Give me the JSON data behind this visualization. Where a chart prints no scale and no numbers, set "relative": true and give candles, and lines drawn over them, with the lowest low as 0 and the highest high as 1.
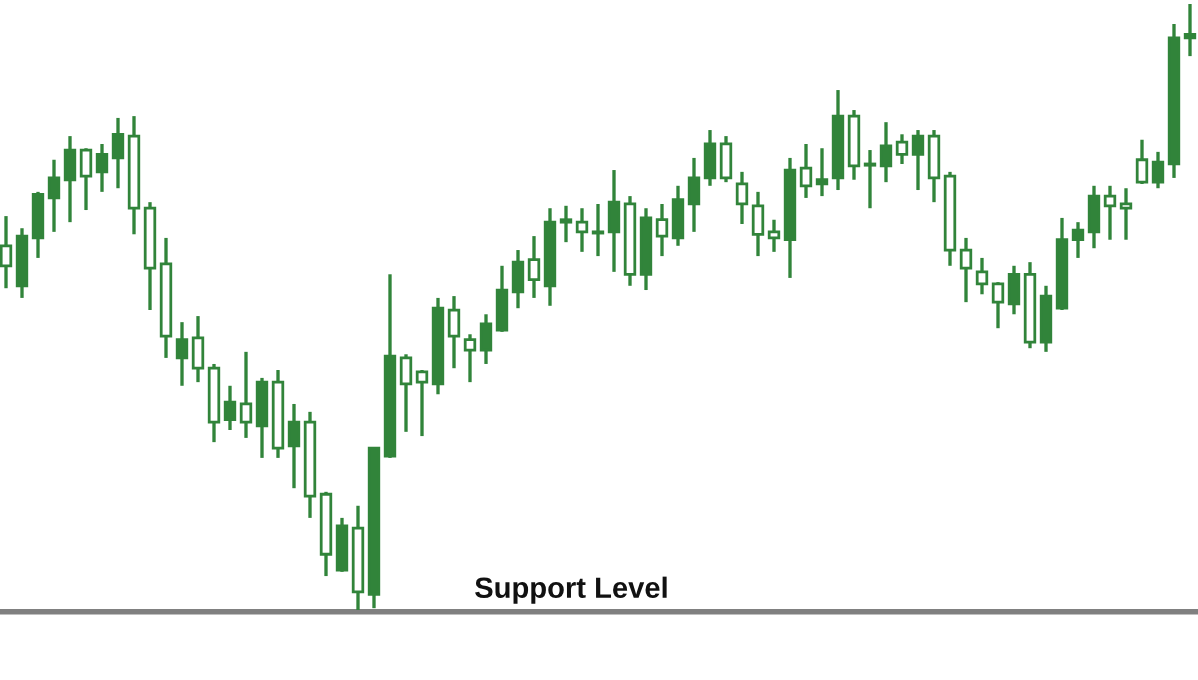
{
  "chart_data": {
    "type": "candlestick",
    "relative": true,
    "categories": [
      null,
      null,
      null,
      null,
      null,
      null,
      null,
      null,
      null,
      null,
      null,
      null,
      null,
      null,
      null,
      null,
      null,
      null,
      null,
      null,
      null,
      null,
      null,
      null,
      null,
      null,
      null,
      null,
      null,
      null,
      null,
      null,
      null,
      null,
      null,
      null,
      null,
      null,
      null,
      null,
      null,
      null,
      null,
      null,
      null,
      null,
      null,
      null,
      null,
      null,
      null,
      null,
      null,
      null,
      null,
      null,
      null,
      null,
      null,
      null,
      null,
      null,
      null,
      null,
      null,
      null,
      null,
      null,
      null,
      null,
      null,
      null,
      null,
      null,
      null
    ],
    "color": "#31843a",
    "ohlc": [
      [
        0.601,
        0.65,
        0.531,
        0.568
      ],
      [
        0.535,
        0.63,
        0.515,
        0.617
      ],
      [
        0.614,
        0.69,
        0.581,
        0.686
      ],
      [
        0.68,
        0.743,
        0.624,
        0.713
      ],
      [
        0.71,
        0.782,
        0.64,
        0.759
      ],
      [
        0.759,
        0.762,
        0.66,
        0.716
      ],
      [
        0.723,
        0.769,
        0.69,
        0.752
      ],
      [
        0.746,
        0.812,
        0.696,
        0.785
      ],
      [
        0.782,
        0.815,
        0.62,
        0.663
      ],
      [
        0.663,
        0.673,
        0.495,
        0.564
      ],
      [
        0.571,
        0.614,
        0.416,
        0.452
      ],
      [
        0.416,
        0.475,
        0.37,
        0.446
      ],
      [
        0.449,
        0.485,
        0.376,
        0.399
      ],
      [
        0.399,
        0.406,
        0.277,
        0.31
      ],
      [
        0.314,
        0.37,
        0.297,
        0.343
      ],
      [
        0.34,
        0.426,
        0.284,
        0.31
      ],
      [
        0.304,
        0.383,
        0.251,
        0.376
      ],
      [
        0.376,
        0.396,
        0.251,
        0.267
      ],
      [
        0.271,
        0.34,
        0.201,
        0.31
      ],
      [
        0.31,
        0.327,
        0.152,
        0.188
      ],
      [
        0.191,
        0.195,
        0.056,
        0.092
      ],
      [
        0.066,
        0.152,
        0.063,
        0.139
      ],
      [
        0.135,
        0.172,
        0.0,
        0.03
      ],
      [
        0.026,
        0.267,
        0.003,
        0.267
      ],
      [
        0.254,
        0.554,
        0.251,
        0.419
      ],
      [
        0.416,
        0.422,
        0.294,
        0.373
      ],
      [
        0.393,
        0.396,
        0.287,
        0.376
      ],
      [
        0.373,
        0.515,
        0.356,
        0.498
      ],
      [
        0.495,
        0.518,
        0.399,
        0.452
      ],
      [
        0.446,
        0.455,
        0.376,
        0.429
      ],
      [
        0.429,
        0.488,
        0.406,
        0.472
      ],
      [
        0.462,
        0.568,
        0.459,
        0.528
      ],
      [
        0.525,
        0.594,
        0.498,
        0.574
      ],
      [
        0.578,
        0.617,
        0.515,
        0.545
      ],
      [
        0.535,
        0.663,
        0.502,
        0.64
      ],
      [
        0.64,
        0.667,
        0.607,
        0.644
      ],
      [
        0.64,
        0.663,
        0.591,
        0.624
      ],
      [
        0.624,
        0.67,
        0.584,
        0.622
      ],
      [
        0.624,
        0.726,
        0.558,
        0.673
      ],
      [
        0.67,
        0.683,
        0.535,
        0.554
      ],
      [
        0.554,
        0.663,
        0.528,
        0.647
      ],
      [
        0.644,
        0.67,
        0.584,
        0.617
      ],
      [
        0.614,
        0.7,
        0.601,
        0.677
      ],
      [
        0.67,
        0.746,
        0.624,
        0.713
      ],
      [
        0.713,
        0.792,
        0.7,
        0.769
      ],
      [
        0.769,
        0.782,
        0.706,
        0.713
      ],
      [
        0.703,
        0.723,
        0.637,
        0.67
      ],
      [
        0.667,
        0.69,
        0.584,
        0.62
      ],
      [
        0.624,
        0.644,
        0.591,
        0.614
      ],
      [
        0.611,
        0.746,
        0.548,
        0.726
      ],
      [
        0.729,
        0.769,
        0.68,
        0.7
      ],
      [
        0.703,
        0.762,
        0.683,
        0.71
      ],
      [
        0.713,
        0.858,
        0.693,
        0.815
      ],
      [
        0.815,
        0.825,
        0.71,
        0.733
      ],
      [
        0.736,
        0.759,
        0.663,
        0.734
      ],
      [
        0.733,
        0.805,
        0.706,
        0.766
      ],
      [
        0.772,
        0.785,
        0.736,
        0.752
      ],
      [
        0.752,
        0.792,
        0.693,
        0.782
      ],
      [
        0.782,
        0.792,
        0.673,
        0.713
      ],
      [
        0.716,
        0.723,
        0.568,
        0.594
      ],
      [
        0.594,
        0.614,
        0.508,
        0.564
      ],
      [
        0.558,
        0.581,
        0.521,
        0.538
      ],
      [
        0.538,
        0.541,
        0.465,
        0.508
      ],
      [
        0.505,
        0.568,
        0.488,
        0.554
      ],
      [
        0.554,
        0.574,
        0.432,
        0.442
      ],
      [
        0.442,
        0.535,
        0.426,
        0.518
      ],
      [
        0.498,
        0.647,
        0.495,
        0.611
      ],
      [
        0.611,
        0.64,
        0.581,
        0.627
      ],
      [
        0.624,
        0.7,
        0.597,
        0.683
      ],
      [
        0.683,
        0.7,
        0.611,
        0.667
      ],
      [
        0.67,
        0.696,
        0.611,
        0.663
      ],
      [
        0.743,
        0.776,
        0.703,
        0.706
      ],
      [
        0.706,
        0.756,
        0.696,
        0.739
      ],
      [
        0.736,
        0.967,
        0.713,
        0.944
      ],
      [
        0.944,
        1.0,
        0.914,
        0.95
      ]
    ],
    "ref_lines": [
      {
        "axis": "y",
        "value": -0.003,
        "label": "Support Level",
        "color": "#808080"
      }
    ],
    "line_style": "solid"
  }
}
